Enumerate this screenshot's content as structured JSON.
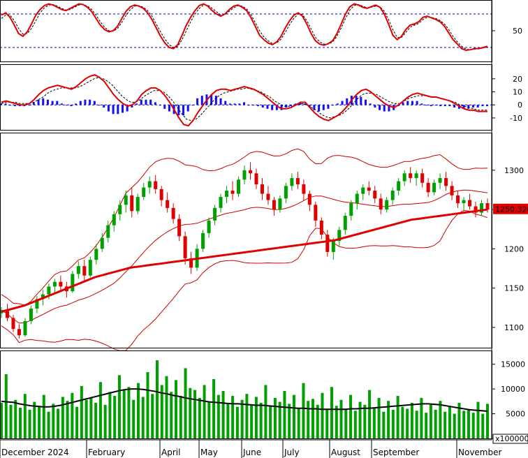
{
  "chart_data": [
    {
      "panel": "oscillator",
      "type": "line",
      "y_ticks": [
        50
      ],
      "ylim": [
        0,
        100
      ],
      "reference_levels": [
        80,
        20
      ],
      "series": [],
      "x_months": [
        "December 2024",
        "February",
        "April",
        "May",
        "June",
        "July",
        "August",
        "September",
        "November"
      ],
      "osc_main": [
        78,
        82,
        74,
        60,
        45,
        40,
        48,
        62,
        78,
        88,
        95,
        98,
        96,
        92,
        88,
        86,
        90,
        94,
        98,
        97,
        92,
        84,
        72,
        60,
        52,
        48,
        50,
        58,
        72,
        85,
        93,
        96,
        94,
        90,
        82,
        70,
        55,
        40,
        28,
        20,
        18,
        25,
        42,
        60,
        74,
        86,
        95,
        98,
        94,
        86,
        80,
        76,
        80,
        88,
        94,
        96,
        92,
        86,
        74,
        58,
        42,
        34,
        28,
        25,
        30,
        40,
        55,
        68,
        78,
        82,
        76,
        62,
        45,
        32,
        26,
        24,
        27,
        32,
        45,
        62,
        80,
        93,
        98,
        96,
        92,
        90,
        93,
        96,
        92,
        80,
        62,
        42,
        34,
        40,
        52,
        60,
        62,
        66,
        74,
        76,
        73,
        70,
        66,
        58,
        46,
        34,
        26,
        18,
        15,
        16,
        18,
        18,
        20,
        22
      ],
      "osc_signal": [
        72,
        78,
        78,
        68,
        54,
        44,
        45,
        54,
        68,
        82,
        91,
        96,
        97,
        94,
        90,
        87,
        88,
        92,
        96,
        97,
        94,
        88,
        78,
        66,
        56,
        50,
        49,
        54,
        65,
        78,
        88,
        94,
        95,
        92,
        86,
        76,
        62,
        48,
        35,
        25,
        20,
        22,
        34,
        50,
        66,
        80,
        90,
        96,
        96,
        90,
        84,
        78,
        79,
        85,
        91,
        95,
        94,
        89,
        79,
        65,
        50,
        39,
        32,
        27,
        28,
        35,
        47,
        61,
        72,
        80,
        79,
        68,
        53,
        38,
        30,
        26,
        26,
        30,
        40,
        55,
        72,
        87,
        95,
        97,
        94,
        91,
        92,
        94,
        93,
        85,
        70,
        52,
        38,
        38,
        47,
        56,
        60,
        63,
        70,
        74,
        74,
        72,
        68,
        62,
        52,
        40,
        30,
        22,
        17,
        16,
        17,
        18,
        19,
        21
      ]
    },
    {
      "panel": "macd",
      "type": "line",
      "y_ticks": [
        20,
        10,
        0,
        -10
      ],
      "ylim": [
        -17,
        29
      ],
      "series": [],
      "macd_line": [
        2,
        3,
        2,
        1,
        0,
        0,
        1,
        4,
        8,
        11,
        13,
        14,
        15,
        14,
        13,
        12,
        14,
        17,
        20,
        22,
        23,
        21,
        18,
        13,
        8,
        4,
        1,
        -1,
        0,
        3,
        8,
        11,
        13,
        13,
        11,
        7,
        2,
        -4,
        -10,
        -15,
        -16,
        -12,
        -6,
        -1,
        4,
        8,
        11,
        12,
        12,
        11,
        12,
        13,
        14,
        13,
        12,
        10,
        8,
        5,
        2,
        -1,
        -3,
        -3,
        -2,
        0,
        2,
        2,
        -2,
        -6,
        -9,
        -11,
        -12,
        -10,
        -8,
        -5,
        -1,
        4,
        8,
        11,
        12,
        10,
        7,
        4,
        1,
        -1,
        -2,
        0,
        3,
        6,
        8,
        9,
        8,
        7,
        6,
        6,
        5,
        4,
        3,
        1,
        -1,
        -3,
        -4,
        -4,
        -5,
        -5,
        -5
      ],
      "macd_signal": [
        1,
        2,
        2,
        2,
        1,
        1,
        1,
        2,
        4,
        6,
        9,
        11,
        12,
        13,
        13,
        13,
        13,
        14,
        16,
        18,
        20,
        21,
        20,
        18,
        15,
        11,
        7,
        4,
        2,
        2,
        4,
        7,
        9,
        11,
        11,
        10,
        7,
        3,
        -2,
        -7,
        -11,
        -12,
        -11,
        -8,
        -4,
        0,
        4,
        7,
        9,
        10,
        11,
        12,
        12,
        13,
        12,
        11,
        10,
        8,
        6,
        3,
        1,
        -1,
        -1,
        -1,
        0,
        1,
        0,
        -2,
        -4,
        -7,
        -9,
        -10,
        -9,
        -8,
        -6,
        -3,
        1,
        5,
        8,
        9,
        9,
        8,
        6,
        4,
        2,
        1,
        1,
        3,
        5,
        6,
        7,
        7,
        7,
        6,
        6,
        5,
        4,
        3,
        2,
        0,
        -1,
        -2,
        -3,
        -4,
        -4,
        -4
      ]
    },
    {
      "panel": "price",
      "type": "candlestick",
      "y_ticks": [
        1300,
        1250,
        1200,
        1150,
        1100
      ],
      "ylim": [
        1076,
        1346
      ],
      "last_price_label": "1250.320",
      "series": [],
      "ohlc": [
        [
          1118,
          1126,
          1112,
          1122
        ],
        [
          1122,
          1130,
          1108,
          1112
        ],
        [
          1112,
          1116,
          1094,
          1098
        ],
        [
          1098,
          1104,
          1086,
          1090
        ],
        [
          1090,
          1112,
          1088,
          1108
        ],
        [
          1108,
          1128,
          1104,
          1124
        ],
        [
          1124,
          1140,
          1118,
          1136
        ],
        [
          1136,
          1148,
          1128,
          1142
        ],
        [
          1142,
          1156,
          1136,
          1152
        ],
        [
          1152,
          1162,
          1144,
          1158
        ],
        [
          1158,
          1166,
          1148,
          1152
        ],
        [
          1152,
          1158,
          1138,
          1146
        ],
        [
          1146,
          1172,
          1144,
          1168
        ],
        [
          1168,
          1184,
          1162,
          1178
        ],
        [
          1178,
          1186,
          1160,
          1166
        ],
        [
          1166,
          1190,
          1164,
          1186
        ],
        [
          1186,
          1206,
          1180,
          1200
        ],
        [
          1200,
          1220,
          1196,
          1214
        ],
        [
          1214,
          1236,
          1208,
          1230
        ],
        [
          1230,
          1248,
          1222,
          1244
        ],
        [
          1244,
          1262,
          1236,
          1256
        ],
        [
          1256,
          1274,
          1246,
          1268
        ],
        [
          1268,
          1278,
          1240,
          1248
        ],
        [
          1248,
          1270,
          1244,
          1266
        ],
        [
          1266,
          1284,
          1262,
          1278
        ],
        [
          1278,
          1292,
          1270,
          1286
        ],
        [
          1286,
          1294,
          1270,
          1276
        ],
        [
          1276,
          1280,
          1254,
          1262
        ],
        [
          1262,
          1272,
          1246,
          1252
        ],
        [
          1252,
          1258,
          1232,
          1238
        ],
        [
          1238,
          1244,
          1210,
          1216
        ],
        [
          1216,
          1222,
          1180,
          1188
        ],
        [
          1188,
          1196,
          1168,
          1176
        ],
        [
          1176,
          1206,
          1172,
          1200
        ],
        [
          1200,
          1224,
          1196,
          1220
        ],
        [
          1220,
          1240,
          1214,
          1236
        ],
        [
          1236,
          1256,
          1230,
          1252
        ],
        [
          1252,
          1270,
          1246,
          1266
        ],
        [
          1266,
          1280,
          1258,
          1274
        ],
        [
          1274,
          1286,
          1262,
          1270
        ],
        [
          1270,
          1292,
          1266,
          1288
        ],
        [
          1288,
          1306,
          1282,
          1300
        ],
        [
          1300,
          1310,
          1288,
          1296
        ],
        [
          1296,
          1302,
          1276,
          1282
        ],
        [
          1282,
          1290,
          1262,
          1270
        ],
        [
          1270,
          1280,
          1256,
          1262
        ],
        [
          1262,
          1266,
          1242,
          1250
        ],
        [
          1250,
          1268,
          1246,
          1264
        ],
        [
          1264,
          1284,
          1258,
          1280
        ],
        [
          1280,
          1296,
          1274,
          1290
        ],
        [
          1290,
          1298,
          1276,
          1282
        ],
        [
          1282,
          1288,
          1262,
          1270
        ],
        [
          1270,
          1274,
          1248,
          1256
        ],
        [
          1256,
          1260,
          1228,
          1236
        ],
        [
          1236,
          1240,
          1212,
          1218
        ],
        [
          1218,
          1224,
          1190,
          1196
        ],
        [
          1196,
          1214,
          1186,
          1210
        ],
        [
          1210,
          1228,
          1204,
          1224
        ],
        [
          1224,
          1246,
          1218,
          1242
        ],
        [
          1242,
          1262,
          1236,
          1258
        ],
        [
          1258,
          1274,
          1250,
          1270
        ],
        [
          1270,
          1282,
          1262,
          1278
        ],
        [
          1278,
          1286,
          1268,
          1274
        ],
        [
          1274,
          1280,
          1258,
          1264
        ],
        [
          1264,
          1270,
          1244,
          1250
        ],
        [
          1250,
          1266,
          1246,
          1262
        ],
        [
          1262,
          1278,
          1256,
          1274
        ],
        [
          1274,
          1290,
          1268,
          1286
        ],
        [
          1286,
          1300,
          1280,
          1296
        ],
        [
          1296,
          1304,
          1284,
          1290
        ],
        [
          1290,
          1300,
          1280,
          1296
        ],
        [
          1296,
          1302,
          1278,
          1284
        ],
        [
          1284,
          1290,
          1266,
          1272
        ],
        [
          1272,
          1288,
          1268,
          1284
        ],
        [
          1284,
          1296,
          1276,
          1290
        ],
        [
          1290,
          1298,
          1274,
          1280
        ],
        [
          1280,
          1286,
          1262,
          1268
        ],
        [
          1268,
          1274,
          1252,
          1258
        ],
        [
          1258,
          1266,
          1248,
          1262
        ],
        [
          1262,
          1270,
          1250,
          1254
        ],
        [
          1254,
          1260,
          1240,
          1246
        ],
        [
          1246,
          1262,
          1242,
          1258
        ],
        [
          1258,
          1264,
          1246,
          1250
        ]
      ],
      "ma200": [
        1120,
        1122,
        1124,
        1126,
        1128,
        1131,
        1134,
        1137,
        1140,
        1143,
        1146,
        1149,
        1152,
        1155,
        1158,
        1161,
        1164,
        1166,
        1168,
        1170,
        1172,
        1174,
        1176,
        1177,
        1178,
        1179,
        1180,
        1181,
        1182,
        1183,
        1184,
        1185,
        1186,
        1187,
        1188,
        1189,
        1190,
        1191,
        1192,
        1193,
        1194,
        1195,
        1196,
        1197,
        1198,
        1199,
        1200,
        1201,
        1202,
        1203,
        1204,
        1205,
        1206,
        1207,
        1208,
        1209,
        1210,
        1211,
        1213,
        1215,
        1217,
        1219,
        1221,
        1223,
        1225,
        1227,
        1229,
        1231,
        1233,
        1235,
        1237,
        1238,
        1239,
        1240,
        1241,
        1242,
        1243,
        1244,
        1245,
        1246,
        1247,
        1248,
        1249,
        1250
      ]
    },
    {
      "panel": "volume",
      "type": "bar",
      "y_ticks": [
        15000,
        10000,
        5000,
        0
      ],
      "ylim": [
        0,
        17500
      ],
      "unit_label": "x100000",
      "series": [],
      "values": [
        7200,
        13000,
        6800,
        7800,
        6200,
        9000,
        5800,
        7400,
        6600,
        8800,
        5400,
        7000,
        6000,
        8400,
        7600,
        9200,
        6400,
        10600,
        7800,
        8200,
        7200,
        11400,
        6800,
        9400,
        8600,
        12800,
        9800,
        10400,
        7800,
        11200,
        8400,
        13400,
        9000,
        15800,
        10800,
        12600,
        9400,
        11800,
        8600,
        14200,
        10200,
        9800,
        8200,
        10800,
        7400,
        12000,
        8800,
        9600,
        7000,
        8600,
        6400,
        7800,
        9000,
        6800,
        8400,
        7200,
        10800,
        6600,
        8200,
        7400,
        9600,
        7000,
        8800,
        6200,
        11200,
        7600,
        8000,
        6800,
        9200,
        5800,
        10400,
        6600,
        7800,
        6000,
        8800,
        5600,
        7400,
        6800,
        9800,
        6200,
        8200,
        5400,
        7600,
        5800,
        8600,
        6400,
        6000,
        7200,
        5600,
        8200,
        5200,
        6800,
        5800,
        7600,
        5400,
        6600,
        5000,
        7200,
        5600,
        5800,
        5200,
        7400,
        5000,
        7000
      ],
      "volume_ma": [
        7500,
        7400,
        7300,
        7000,
        6800,
        6600,
        6500,
        6400,
        6400,
        6500,
        6700,
        7000,
        7300,
        7600,
        7900,
        8200,
        8500,
        8800,
        9100,
        9400,
        9700,
        9900,
        10000,
        10000,
        9900,
        9700,
        9500,
        9200,
        9000,
        8700,
        8500,
        8200,
        8000,
        7800,
        7600,
        7400,
        7300,
        7200,
        7100,
        7000,
        7000,
        6900,
        6800,
        6700,
        6700,
        6600,
        6500,
        6400,
        6300,
        6200,
        6100,
        6100,
        6000,
        6000,
        5900,
        5900,
        5900,
        5900,
        5900,
        6000,
        6000,
        6100,
        6100,
        6200,
        6300,
        6400,
        6500,
        6600,
        6700,
        6800,
        6900,
        7000,
        7000,
        6900,
        6800,
        6600,
        6400,
        6200,
        6000,
        5800,
        5700,
        5600,
        5500
      ]
    }
  ],
  "axis": {
    "months": [
      {
        "label": "December 2024",
        "pos": 0
      },
      {
        "label": "February",
        "pos": 124
      },
      {
        "label": "April",
        "pos": 229
      },
      {
        "label": "May",
        "pos": 285
      },
      {
        "label": "June",
        "pos": 346
      },
      {
        "label": "July",
        "pos": 405
      },
      {
        "label": "August",
        "pos": 472
      },
      {
        "label": "September",
        "pos": 532
      },
      {
        "label": "November",
        "pos": 654
      }
    ]
  },
  "colors": {
    "up": "#00a000",
    "down": "#e00000",
    "line_red": "#e00000",
    "line_black": "#000000",
    "hist_pos": "#1010ff",
    "ref_dash": "#0000cc",
    "band": "#cc0000",
    "price_label_bg": "#e00000"
  }
}
